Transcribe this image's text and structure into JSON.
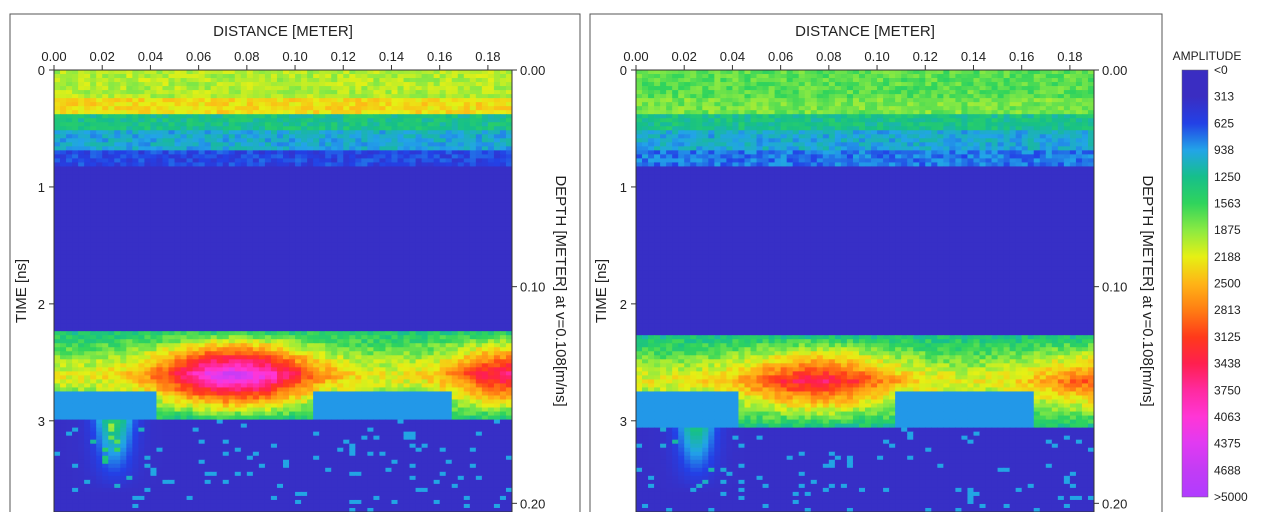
{
  "chart_data": [
    {
      "type": "heatmap",
      "xlabel": "DISTANCE [METER]",
      "ylabel": "TIME [ns]",
      "y2label": "DEPTH [METER] at v=0.108[m/ns]",
      "xticks": [
        "0.00",
        "0.02",
        "0.04",
        "0.06",
        "0.08",
        "0.10",
        "0.12",
        "0.14",
        "0.16",
        "0.18"
      ],
      "xlim": [
        0,
        0.19
      ],
      "yticks": [
        "0",
        "1",
        "2",
        "3"
      ],
      "ylim": [
        0,
        3.78
      ],
      "y2ticks": [
        "0.00",
        "0.10",
        "0.20"
      ],
      "y2lim": [
        0,
        0.204
      ],
      "layers": [
        {
          "t": 0.15,
          "a": 2000
        },
        {
          "t": 0.3,
          "a": 2300
        },
        {
          "t": 0.45,
          "a": 1300
        },
        {
          "t": 0.6,
          "a": 1000
        },
        {
          "t": 0.75,
          "a": 600
        }
      ],
      "reflector": {
        "time": [
          2.22,
          3.0
        ],
        "peak_x": 0.075,
        "peak_amplitude": 4600,
        "right_edge_amplitude": 3700
      },
      "legend": "right"
    },
    {
      "type": "heatmap",
      "xlabel": "DISTANCE [METER]",
      "ylabel": "TIME [ns]",
      "y2label": "DEPTH [METER] at v=0.108[m/ns]",
      "xticks": [
        "0.00",
        "0.02",
        "0.04",
        "0.06",
        "0.08",
        "0.10",
        "0.12",
        "0.14",
        "0.16",
        "0.18"
      ],
      "xlim": [
        0,
        0.19
      ],
      "yticks": [
        "0",
        "1",
        "2",
        "3"
      ],
      "ylim": [
        0,
        3.78
      ],
      "y2ticks": [
        "0.00",
        "0.10",
        "0.20"
      ],
      "y2lim": [
        0,
        0.204
      ],
      "layers": [
        {
          "t": 0.15,
          "a": 1700
        },
        {
          "t": 0.3,
          "a": 1800
        },
        {
          "t": 0.45,
          "a": 1300
        },
        {
          "t": 0.6,
          "a": 1000
        },
        {
          "t": 0.75,
          "a": 800
        }
      ],
      "reflector": {
        "time": [
          2.27,
          3.05
        ],
        "peak_x": 0.075,
        "peak_amplitude": 3500,
        "right_edge_amplitude": 3000
      },
      "legend": "right"
    }
  ],
  "colorbar": {
    "title": "AMPLITUDE",
    "labels": [
      "<0",
      "313",
      "625",
      "938",
      "1250",
      "1563",
      "1875",
      "2188",
      "2500",
      "2813",
      "3125",
      "3438",
      "3750",
      "4063",
      "4375",
      "4688",
      ">5000"
    ],
    "colors": [
      "#3a2dc2",
      "#3a2dc2",
      "#2341e6",
      "#22a4e8",
      "#16bf8a",
      "#30d45c",
      "#8bea42",
      "#e6f014",
      "#ffb416",
      "#ff7d13",
      "#ff3a1a",
      "#ff1f4f",
      "#ff2aa0",
      "#ff36d6",
      "#e03af2",
      "#c23cf5",
      "#b03cff"
    ]
  }
}
